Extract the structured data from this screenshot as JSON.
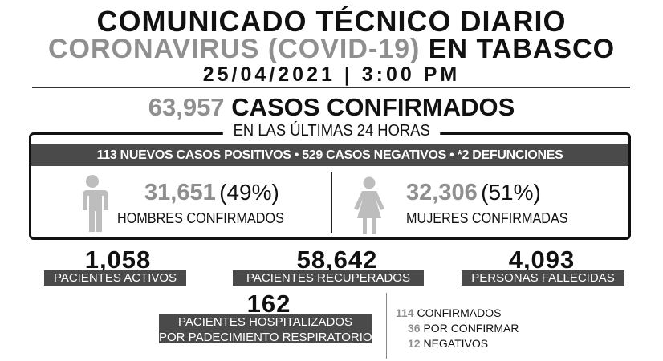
{
  "header": {
    "title": "COMUNICADO TÉCNICO DIARIO",
    "subtitle_gray": "CORONAVIRUS (COVID-19)",
    "subtitle_black": "EN TABASCO",
    "date": "25/04/2021 | 3:00 PM"
  },
  "total": {
    "number": "63,957",
    "label": "CASOS CONFIRMADOS"
  },
  "last24": {
    "title": "EN LAS ÚLTIMAS 24 HORAS",
    "summary": "113 NUEVOS CASOS POSITIVOS •  529 CASOS NEGATIVOS •  *2 DEFUNCIONES"
  },
  "men": {
    "number": "31,651",
    "percent": "(49%)",
    "label": "HOMBRES CONFIRMADOS",
    "icon": "man-icon"
  },
  "women": {
    "number": "32,306",
    "percent": "(51%)",
    "label": "MUJERES CONFIRMADAS",
    "icon": "woman-icon"
  },
  "stats": [
    {
      "number": "1,058",
      "label": "PACIENTES ACTIVOS"
    },
    {
      "number": "58,642",
      "label": "PACIENTES RECUPERADOS"
    },
    {
      "number": "4,093",
      "label": "PERSONAS FALLECIDAS"
    }
  ],
  "hospital": {
    "number": "162",
    "label_line1": "PACIENTES HOSPITALIZADOS",
    "label_line2": "POR PADECIMIENTO RESPIRATORIO",
    "breakdown": [
      {
        "n": "114",
        "label": "CONFIRMADOS"
      },
      {
        "n": "36",
        "label": "POR CONFIRMAR"
      },
      {
        "n": "12",
        "label": "NEGATIVOS"
      }
    ]
  },
  "colors": {
    "gray": "#8f8f8f",
    "dark_bar": "#4a4a4a",
    "figure": "#bdbdbd"
  }
}
